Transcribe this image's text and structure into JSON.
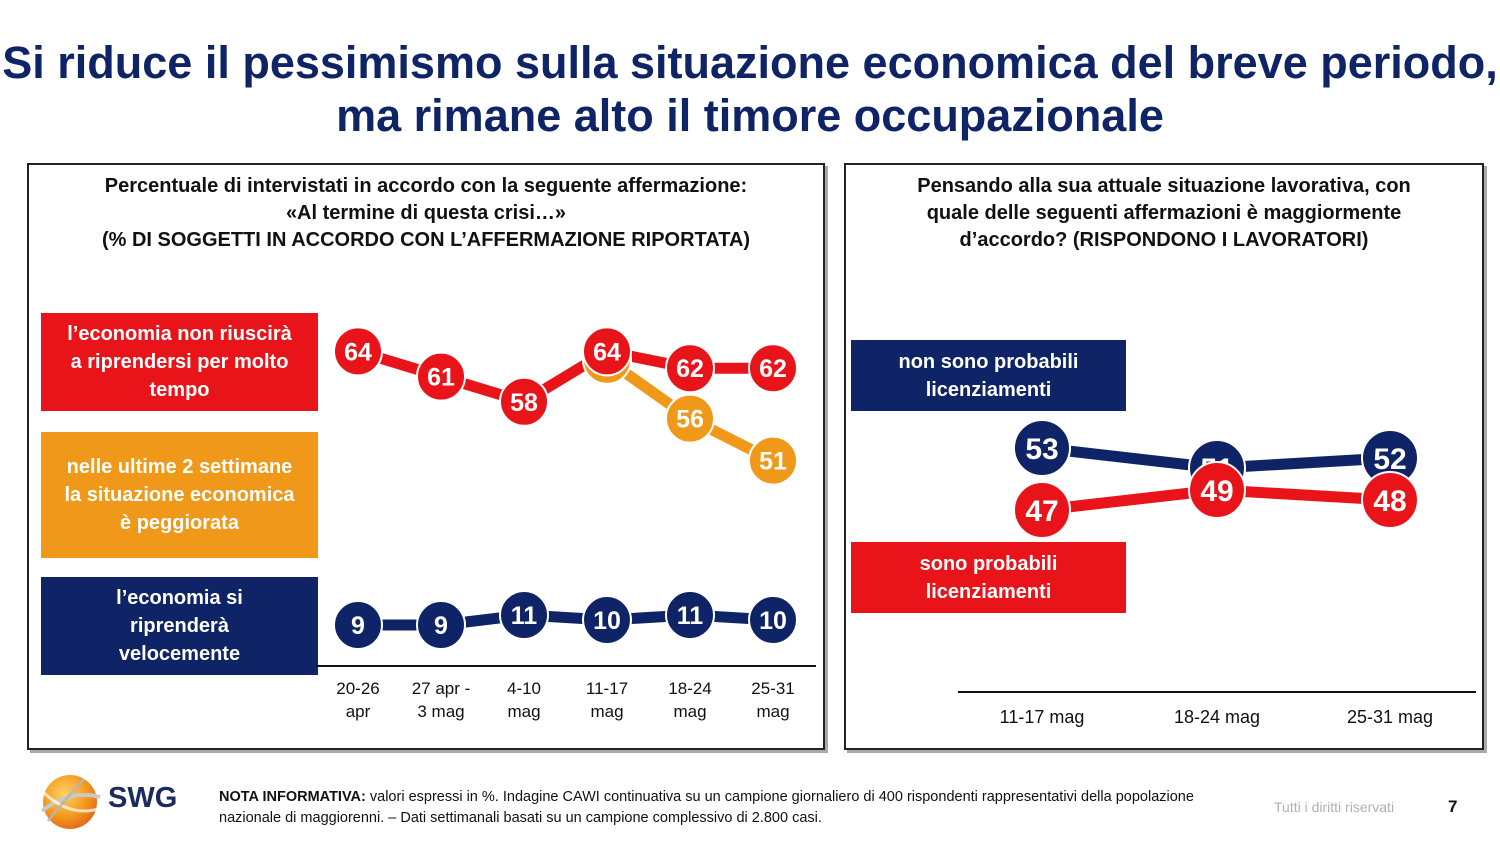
{
  "title": "Si riduce il pessimismo sulla situazione economica del breve periodo, ma rimane alto il timore occupazionale",
  "colors": {
    "red": "#e8141a",
    "orange": "#f09819",
    "navy": "#0f2466",
    "white": "#ffffff"
  },
  "left_panel": {
    "header_lines": [
      "Percentuale di intervistati in accordo con la seguente affermazione:",
      "«Al termine di questa crisi…»",
      "(% DI SOGGETTI IN ACCORDO CON L’AFFERMAZIONE RIPORTATA)"
    ],
    "legend": [
      {
        "label": "l’economia non riuscirà a riprendersi per molto tempo",
        "color": "#e8141a"
      },
      {
        "label": "nelle ultime 2 settimane la situazione economica è peggiorata",
        "color": "#f09819"
      },
      {
        "label": "l’economia si riprenderà velocemente",
        "color": "#0f2466"
      }
    ]
  },
  "right_panel": {
    "header_lines": [
      "Pensando alla sua attuale situazione lavorativa, con",
      "quale delle seguenti affermazioni è maggiormente",
      "d’accordo? (RISPONDONO I LAVORATORI)"
    ],
    "legend": [
      {
        "label": "non sono probabili licenziamenti",
        "color": "#0f2466"
      },
      {
        "label": "sono probabili licenziamenti",
        "color": "#e8141a"
      }
    ]
  },
  "chart_data": [
    {
      "type": "line",
      "categories": [
        "20-26 apr",
        "27 apr - 3 mag",
        "4-10 mag",
        "11-17 mag",
        "18-24 mag",
        "25-31 mag"
      ],
      "category_lines": [
        [
          "20-26",
          "apr"
        ],
        [
          "27 apr -",
          "3 mag"
        ],
        [
          "4-10",
          "mag"
        ],
        [
          "11-17",
          "mag"
        ],
        [
          "18-24",
          "mag"
        ],
        [
          "25-31",
          "mag"
        ]
      ],
      "series": [
        {
          "name": "l’economia non riuscirà a riprendersi per molto tempo",
          "color": "#e8141a",
          "values": [
            64,
            61,
            58,
            64,
            62,
            62
          ]
        },
        {
          "name": "nelle ultime 2 settimane la situazione economica è peggiorata",
          "color": "#f09819",
          "values": [
            null,
            null,
            null,
            63,
            56,
            51
          ]
        },
        {
          "name": "l’economia si riprenderà velocemente",
          "color": "#0f2466",
          "values": [
            9,
            9,
            11,
            10,
            11,
            10
          ]
        }
      ],
      "data_labels": true
    },
    {
      "type": "line",
      "categories": [
        "11-17 mag",
        "18-24 mag",
        "25-31 mag"
      ],
      "series": [
        {
          "name": "non sono probabili licenziamenti",
          "color": "#0f2466",
          "values": [
            53,
            51,
            52
          ]
        },
        {
          "name": "sono probabili licenziamenti",
          "color": "#e8141a",
          "values": [
            47,
            49,
            48
          ]
        }
      ],
      "data_labels": true
    }
  ],
  "footer": {
    "note_bold": "NOTA INFORMATIVA:",
    "note_text": " valori espressi in %. Indagine CAWI continuativa su un campione giornaliero di 400 rispondenti rappresentativi della popolazione nazionale di maggiorenni. – Dati settimanali basati su un campione complessivo di 2.800 casi.",
    "rights": "Tutti i diritti riservati",
    "page_number": "7",
    "logo_text": "SWG"
  }
}
